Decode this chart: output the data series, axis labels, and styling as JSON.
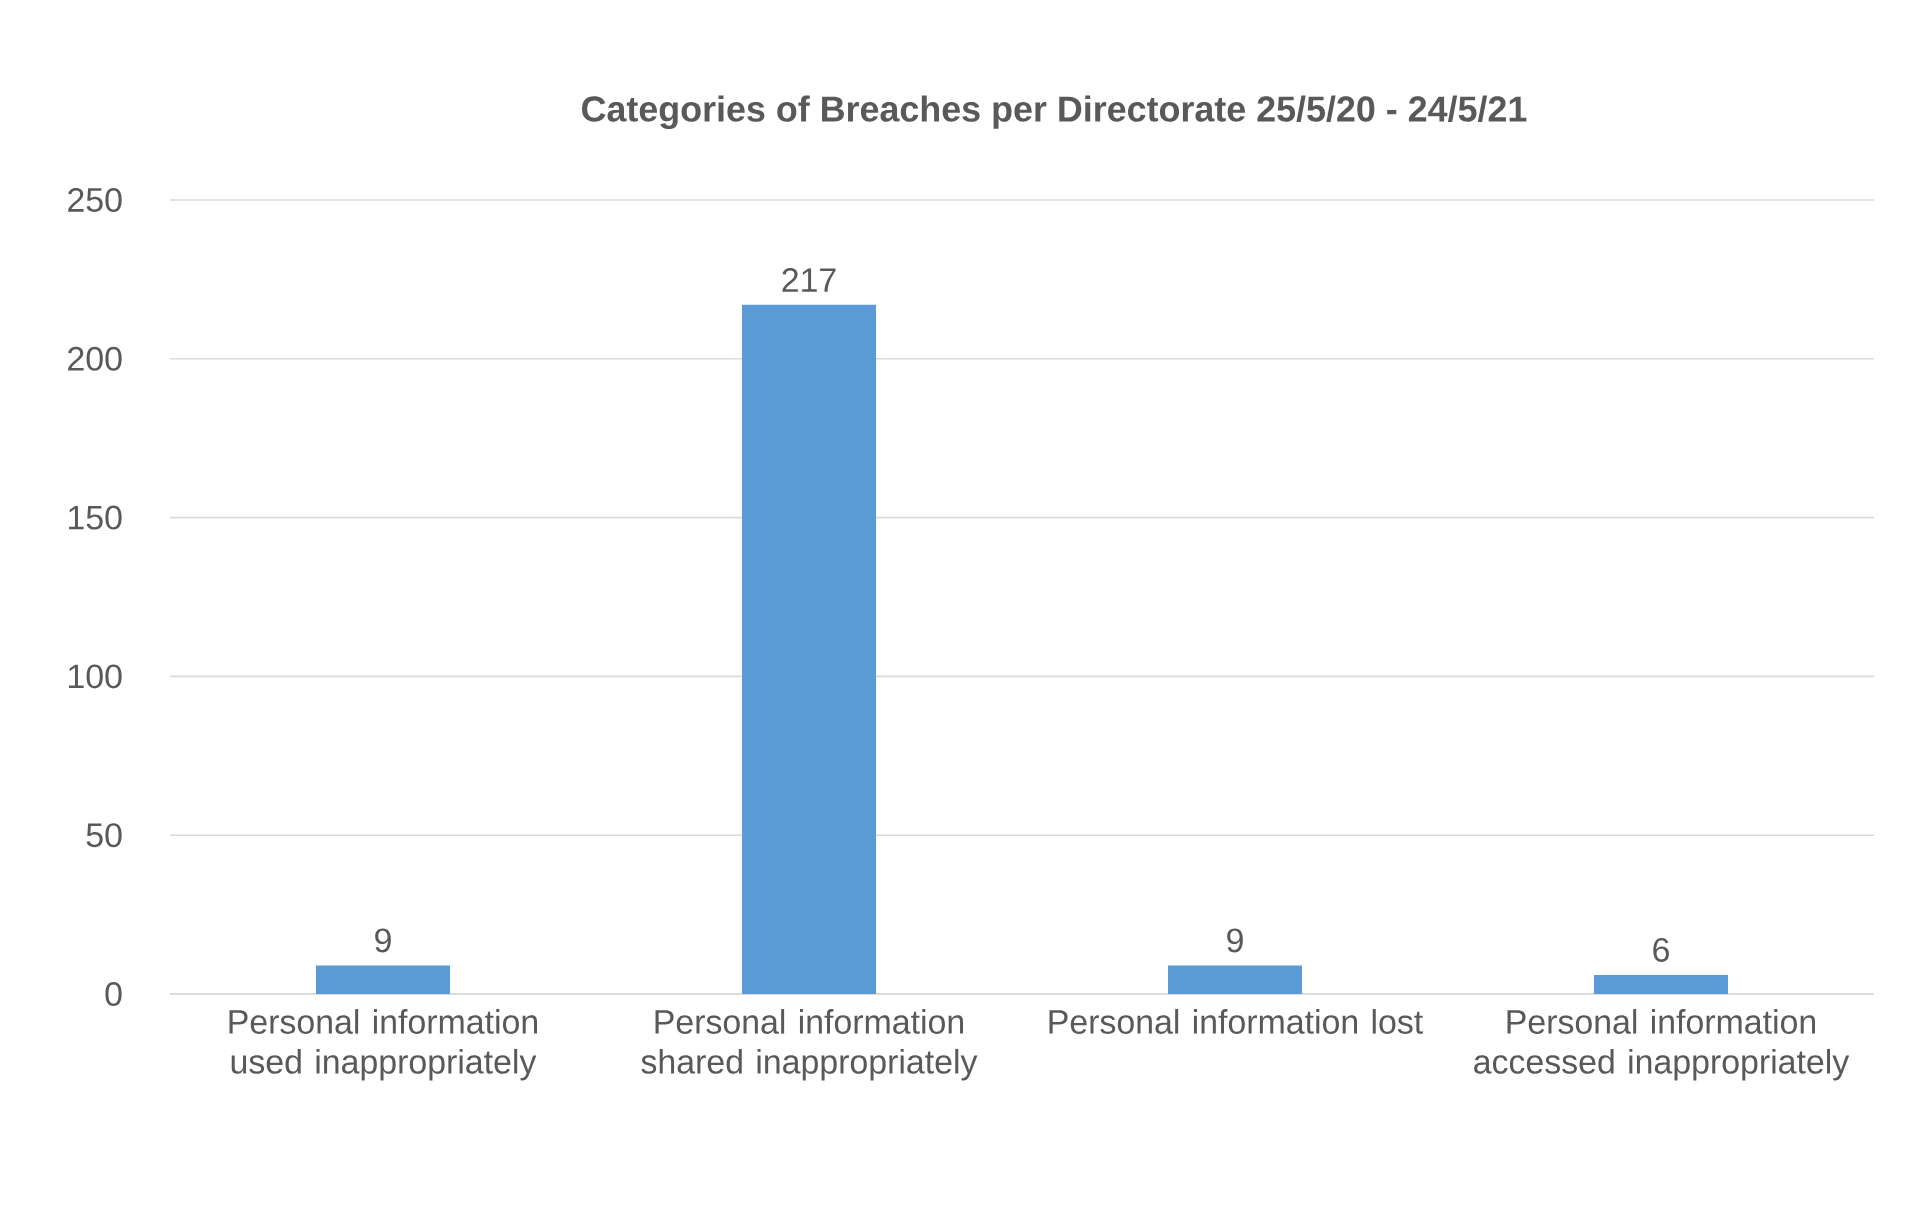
{
  "chart_data": {
    "type": "bar",
    "title": "Categories of Breaches per Directorate 25/5/20 - 24/5/21",
    "categories": [
      "Personal information used inappropriately",
      "Personal information shared inappropriately",
      "Personal information lost",
      "Personal information accessed inappropriately"
    ],
    "values": [
      9,
      217,
      9,
      6
    ],
    "color": "#5b9bd5",
    "ylim": [
      0,
      250
    ],
    "yticks": [
      0,
      50,
      100,
      150,
      200,
      250
    ],
    "grid": "y",
    "data_labels": true
  }
}
